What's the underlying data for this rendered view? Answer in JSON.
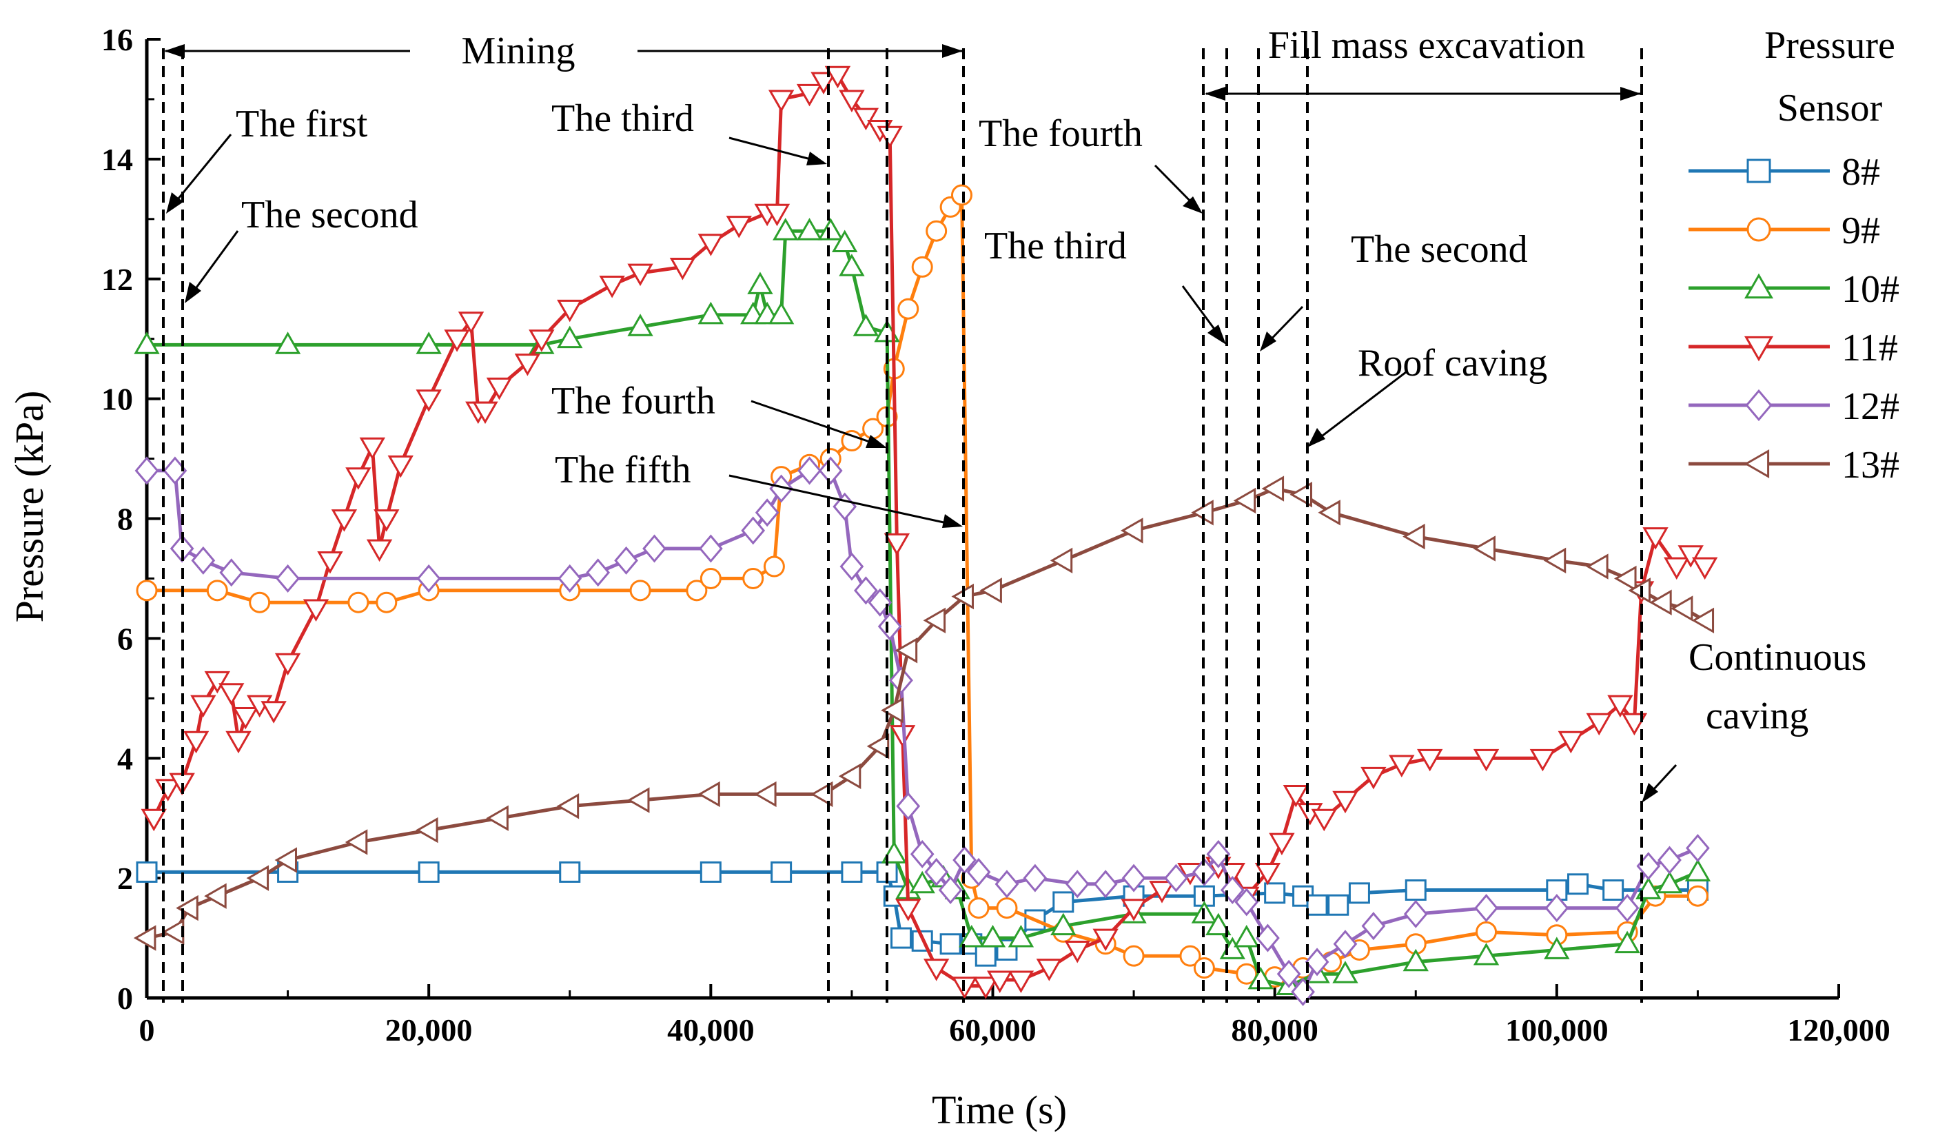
{
  "chart_data": {
    "type": "line",
    "title": "",
    "xlabel": "Time (s)",
    "ylabel": "Pressure (kPa)",
    "xlim": [
      0,
      120000
    ],
    "ylim": [
      0,
      16
    ],
    "grid": false,
    "x_ticks": [
      "0",
      "20,000",
      "40,000",
      "60,000",
      "80,000",
      "100,000",
      "120,000"
    ],
    "y_ticks": [
      "0",
      "2",
      "4",
      "6",
      "8",
      "10",
      "12",
      "14",
      "16"
    ],
    "legend": {
      "title_line1": "Pressure",
      "title_line2": "Sensor",
      "placement": "right"
    },
    "series": [
      {
        "name": "8#",
        "color": "#1f77b4",
        "marker": "square",
        "points": [
          [
            0,
            2.1
          ],
          [
            10000,
            2.1
          ],
          [
            20000,
            2.1
          ],
          [
            30000,
            2.1
          ],
          [
            40000,
            2.1
          ],
          [
            45000,
            2.1
          ],
          [
            50000,
            2.1
          ],
          [
            52500,
            2.1
          ],
          [
            53000,
            1.7
          ],
          [
            53500,
            1.0
          ],
          [
            55000,
            0.95
          ],
          [
            57000,
            0.9
          ],
          [
            58500,
            0.9
          ],
          [
            59500,
            0.7
          ],
          [
            61000,
            0.8
          ],
          [
            63000,
            1.3
          ],
          [
            65000,
            1.6
          ],
          [
            70000,
            1.7
          ],
          [
            75000,
            1.7
          ],
          [
            80000,
            1.75
          ],
          [
            82000,
            1.7
          ],
          [
            83000,
            1.55
          ],
          [
            84500,
            1.55
          ],
          [
            86000,
            1.75
          ],
          [
            90000,
            1.8
          ],
          [
            100000,
            1.8
          ],
          [
            101500,
            1.9
          ],
          [
            104000,
            1.8
          ],
          [
            110000,
            1.8
          ]
        ]
      },
      {
        "name": "9#",
        "color": "#ff7f0e",
        "marker": "circle",
        "points": [
          [
            0,
            6.8
          ],
          [
            5000,
            6.8
          ],
          [
            8000,
            6.6
          ],
          [
            15000,
            6.6
          ],
          [
            17000,
            6.6
          ],
          [
            20000,
            6.8
          ],
          [
            30000,
            6.8
          ],
          [
            35000,
            6.8
          ],
          [
            39000,
            6.8
          ],
          [
            40000,
            7.0
          ],
          [
            43000,
            7.0
          ],
          [
            44500,
            7.2
          ],
          [
            45000,
            8.7
          ],
          [
            47000,
            8.9
          ],
          [
            48500,
            9.0
          ],
          [
            50000,
            9.3
          ],
          [
            51500,
            9.5
          ],
          [
            52500,
            9.7
          ],
          [
            53000,
            10.5
          ],
          [
            54000,
            11.5
          ],
          [
            55000,
            12.2
          ],
          [
            56000,
            12.8
          ],
          [
            57000,
            13.2
          ],
          [
            57800,
            13.4
          ],
          [
            58500,
            2.0
          ],
          [
            59000,
            1.5
          ],
          [
            61000,
            1.5
          ],
          [
            65000,
            1.1
          ],
          [
            68000,
            0.9
          ],
          [
            70000,
            0.7
          ],
          [
            74000,
            0.7
          ],
          [
            75000,
            0.5
          ],
          [
            78000,
            0.4
          ],
          [
            80000,
            0.35
          ],
          [
            82000,
            0.5
          ],
          [
            84000,
            0.6
          ],
          [
            86000,
            0.8
          ],
          [
            90000,
            0.9
          ],
          [
            95000,
            1.1
          ],
          [
            100000,
            1.05
          ],
          [
            105000,
            1.1
          ],
          [
            107000,
            1.7
          ],
          [
            110000,
            1.7
          ]
        ]
      },
      {
        "name": "10#",
        "color": "#2ca02c",
        "marker": "triangle-up",
        "points": [
          [
            0,
            10.9
          ],
          [
            10000,
            10.9
          ],
          [
            20000,
            10.9
          ],
          [
            28000,
            10.9
          ],
          [
            30000,
            11.0
          ],
          [
            35000,
            11.2
          ],
          [
            40000,
            11.4
          ],
          [
            43000,
            11.4
          ],
          [
            43500,
            11.9
          ],
          [
            44000,
            11.4
          ],
          [
            45000,
            11.4
          ],
          [
            45300,
            12.8
          ],
          [
            47000,
            12.8
          ],
          [
            48500,
            12.8
          ],
          [
            49500,
            12.6
          ],
          [
            50000,
            12.2
          ],
          [
            51000,
            11.2
          ],
          [
            52500,
            11.1
          ],
          [
            53000,
            2.4
          ],
          [
            54000,
            1.8
          ],
          [
            55000,
            1.9
          ],
          [
            56500,
            2.0
          ],
          [
            57500,
            1.8
          ],
          [
            58500,
            1.0
          ],
          [
            60000,
            1.0
          ],
          [
            62000,
            1.0
          ],
          [
            65000,
            1.2
          ],
          [
            70000,
            1.4
          ],
          [
            75000,
            1.4
          ],
          [
            76000,
            1.2
          ],
          [
            77000,
            0.8
          ],
          [
            78000,
            1.0
          ],
          [
            79000,
            0.3
          ],
          [
            81000,
            0.2
          ],
          [
            83000,
            0.4
          ],
          [
            85000,
            0.4
          ],
          [
            90000,
            0.6
          ],
          [
            95000,
            0.7
          ],
          [
            100000,
            0.8
          ],
          [
            105000,
            0.9
          ],
          [
            106500,
            1.8
          ],
          [
            108000,
            1.9
          ],
          [
            110000,
            2.1
          ]
        ]
      },
      {
        "name": "11#",
        "color": "#d62728",
        "marker": "triangle-down",
        "points": [
          [
            500,
            3.0
          ],
          [
            1500,
            3.5
          ],
          [
            2500,
            3.6
          ],
          [
            3500,
            4.3
          ],
          [
            4000,
            4.9
          ],
          [
            5000,
            5.3
          ],
          [
            6000,
            5.1
          ],
          [
            6500,
            4.3
          ],
          [
            7000,
            4.7
          ],
          [
            8000,
            4.9
          ],
          [
            9000,
            4.8
          ],
          [
            10000,
            5.6
          ],
          [
            12000,
            6.5
          ],
          [
            13000,
            7.3
          ],
          [
            14000,
            8.0
          ],
          [
            15000,
            8.7
          ],
          [
            16000,
            9.2
          ],
          [
            16500,
            7.5
          ],
          [
            17000,
            8.0
          ],
          [
            18000,
            8.9
          ],
          [
            20000,
            10.0
          ],
          [
            22000,
            11.0
          ],
          [
            23000,
            11.3
          ],
          [
            23500,
            9.8
          ],
          [
            24000,
            9.8
          ],
          [
            25000,
            10.2
          ],
          [
            27000,
            10.6
          ],
          [
            28000,
            11.0
          ],
          [
            30000,
            11.5
          ],
          [
            33000,
            11.9
          ],
          [
            35000,
            12.1
          ],
          [
            38000,
            12.2
          ],
          [
            40000,
            12.6
          ],
          [
            42000,
            12.9
          ],
          [
            44000,
            13.1
          ],
          [
            44700,
            13.1
          ],
          [
            45000,
            15.0
          ],
          [
            47000,
            15.1
          ],
          [
            48000,
            15.3
          ],
          [
            49000,
            15.4
          ],
          [
            50000,
            15.0
          ],
          [
            51000,
            14.7
          ],
          [
            52000,
            14.5
          ],
          [
            52700,
            14.4
          ],
          [
            53200,
            7.6
          ],
          [
            53600,
            4.4
          ],
          [
            54000,
            1.5
          ],
          [
            56000,
            0.5
          ],
          [
            58000,
            0.2
          ],
          [
            59500,
            0.2
          ],
          [
            60500,
            0.3
          ],
          [
            62000,
            0.3
          ],
          [
            64000,
            0.5
          ],
          [
            66000,
            0.8
          ],
          [
            68000,
            1.0
          ],
          [
            70000,
            1.5
          ],
          [
            72000,
            1.8
          ],
          [
            74000,
            2.1
          ],
          [
            76000,
            2.2
          ],
          [
            77000,
            2.1
          ],
          [
            78000,
            1.7
          ],
          [
            79500,
            2.1
          ],
          [
            80500,
            2.6
          ],
          [
            81500,
            3.4
          ],
          [
            82500,
            3.1
          ],
          [
            83500,
            3.0
          ],
          [
            85000,
            3.3
          ],
          [
            87000,
            3.7
          ],
          [
            89000,
            3.9
          ],
          [
            91000,
            4.0
          ],
          [
            95000,
            4.0
          ],
          [
            99000,
            4.0
          ],
          [
            101000,
            4.3
          ],
          [
            103000,
            4.6
          ],
          [
            104500,
            4.9
          ],
          [
            105500,
            4.6
          ],
          [
            106000,
            6.8
          ],
          [
            107000,
            7.7
          ],
          [
            108500,
            7.2
          ],
          [
            109500,
            7.4
          ],
          [
            110500,
            7.2
          ]
        ]
      },
      {
        "name": "12#",
        "color": "#9467bd",
        "marker": "diamond",
        "points": [
          [
            0,
            8.8
          ],
          [
            2000,
            8.8
          ],
          [
            2500,
            7.5
          ],
          [
            4000,
            7.3
          ],
          [
            6000,
            7.1
          ],
          [
            10000,
            7.0
          ],
          [
            20000,
            7.0
          ],
          [
            30000,
            7.0
          ],
          [
            32000,
            7.1
          ],
          [
            34000,
            7.3
          ],
          [
            36000,
            7.5
          ],
          [
            40000,
            7.5
          ],
          [
            43000,
            7.8
          ],
          [
            44000,
            8.1
          ],
          [
            45000,
            8.5
          ],
          [
            47000,
            8.8
          ],
          [
            48500,
            8.8
          ],
          [
            49500,
            8.2
          ],
          [
            50000,
            7.2
          ],
          [
            51000,
            6.8
          ],
          [
            52000,
            6.6
          ],
          [
            52700,
            6.2
          ],
          [
            53500,
            5.3
          ],
          [
            54000,
            3.2
          ],
          [
            55000,
            2.4
          ],
          [
            56000,
            2.1
          ],
          [
            57000,
            1.8
          ],
          [
            58000,
            2.3
          ],
          [
            59000,
            2.1
          ],
          [
            61000,
            1.9
          ],
          [
            63000,
            2.0
          ],
          [
            66000,
            1.9
          ],
          [
            68000,
            1.9
          ],
          [
            70000,
            2.0
          ],
          [
            73000,
            2.0
          ],
          [
            75000,
            2.1
          ],
          [
            76000,
            2.4
          ],
          [
            77000,
            1.8
          ],
          [
            78000,
            1.6
          ],
          [
            79500,
            1.0
          ],
          [
            81000,
            0.4
          ],
          [
            82000,
            0.1
          ],
          [
            83000,
            0.6
          ],
          [
            85000,
            0.9
          ],
          [
            87000,
            1.2
          ],
          [
            90000,
            1.4
          ],
          [
            95000,
            1.5
          ],
          [
            100000,
            1.5
          ],
          [
            105000,
            1.5
          ],
          [
            106500,
            2.2
          ],
          [
            108000,
            2.3
          ],
          [
            110000,
            2.5
          ]
        ]
      },
      {
        "name": "13#",
        "color": "#8c4a3f",
        "marker": "triangle-left",
        "points": [
          [
            0,
            1.0
          ],
          [
            2000,
            1.1
          ],
          [
            3000,
            1.5
          ],
          [
            5000,
            1.7
          ],
          [
            8000,
            2.0
          ],
          [
            10000,
            2.3
          ],
          [
            15000,
            2.6
          ],
          [
            20000,
            2.8
          ],
          [
            25000,
            3.0
          ],
          [
            30000,
            3.2
          ],
          [
            35000,
            3.3
          ],
          [
            40000,
            3.4
          ],
          [
            44000,
            3.4
          ],
          [
            48000,
            3.4
          ],
          [
            50000,
            3.7
          ],
          [
            52000,
            4.2
          ],
          [
            53000,
            4.8
          ],
          [
            54000,
            5.8
          ],
          [
            56000,
            6.3
          ],
          [
            58000,
            6.7
          ],
          [
            60000,
            6.8
          ],
          [
            65000,
            7.3
          ],
          [
            70000,
            7.8
          ],
          [
            75000,
            8.1
          ],
          [
            78000,
            8.3
          ],
          [
            80000,
            8.5
          ],
          [
            82000,
            8.4
          ],
          [
            84000,
            8.1
          ],
          [
            90000,
            7.7
          ],
          [
            95000,
            7.5
          ],
          [
            100000,
            7.3
          ],
          [
            103000,
            7.2
          ],
          [
            105000,
            7.0
          ],
          [
            106000,
            6.8
          ],
          [
            107500,
            6.6
          ],
          [
            109000,
            6.5
          ],
          [
            110500,
            6.3
          ]
        ]
      }
    ],
    "annotations": {
      "mining": "Mining",
      "fill_mass_excavation": "Fill mass excavation",
      "first_a": "The first",
      "second_a": "The second",
      "third_a": "The third",
      "fourth_a": "The fourth",
      "fifth_a": "The fifth",
      "fourth_b": "The fourth",
      "third_b": "The third",
      "second_b": "The second",
      "roof_caving": "Roof caving",
      "continuous_1": "Continuous",
      "continuous_2": "caving"
    }
  }
}
